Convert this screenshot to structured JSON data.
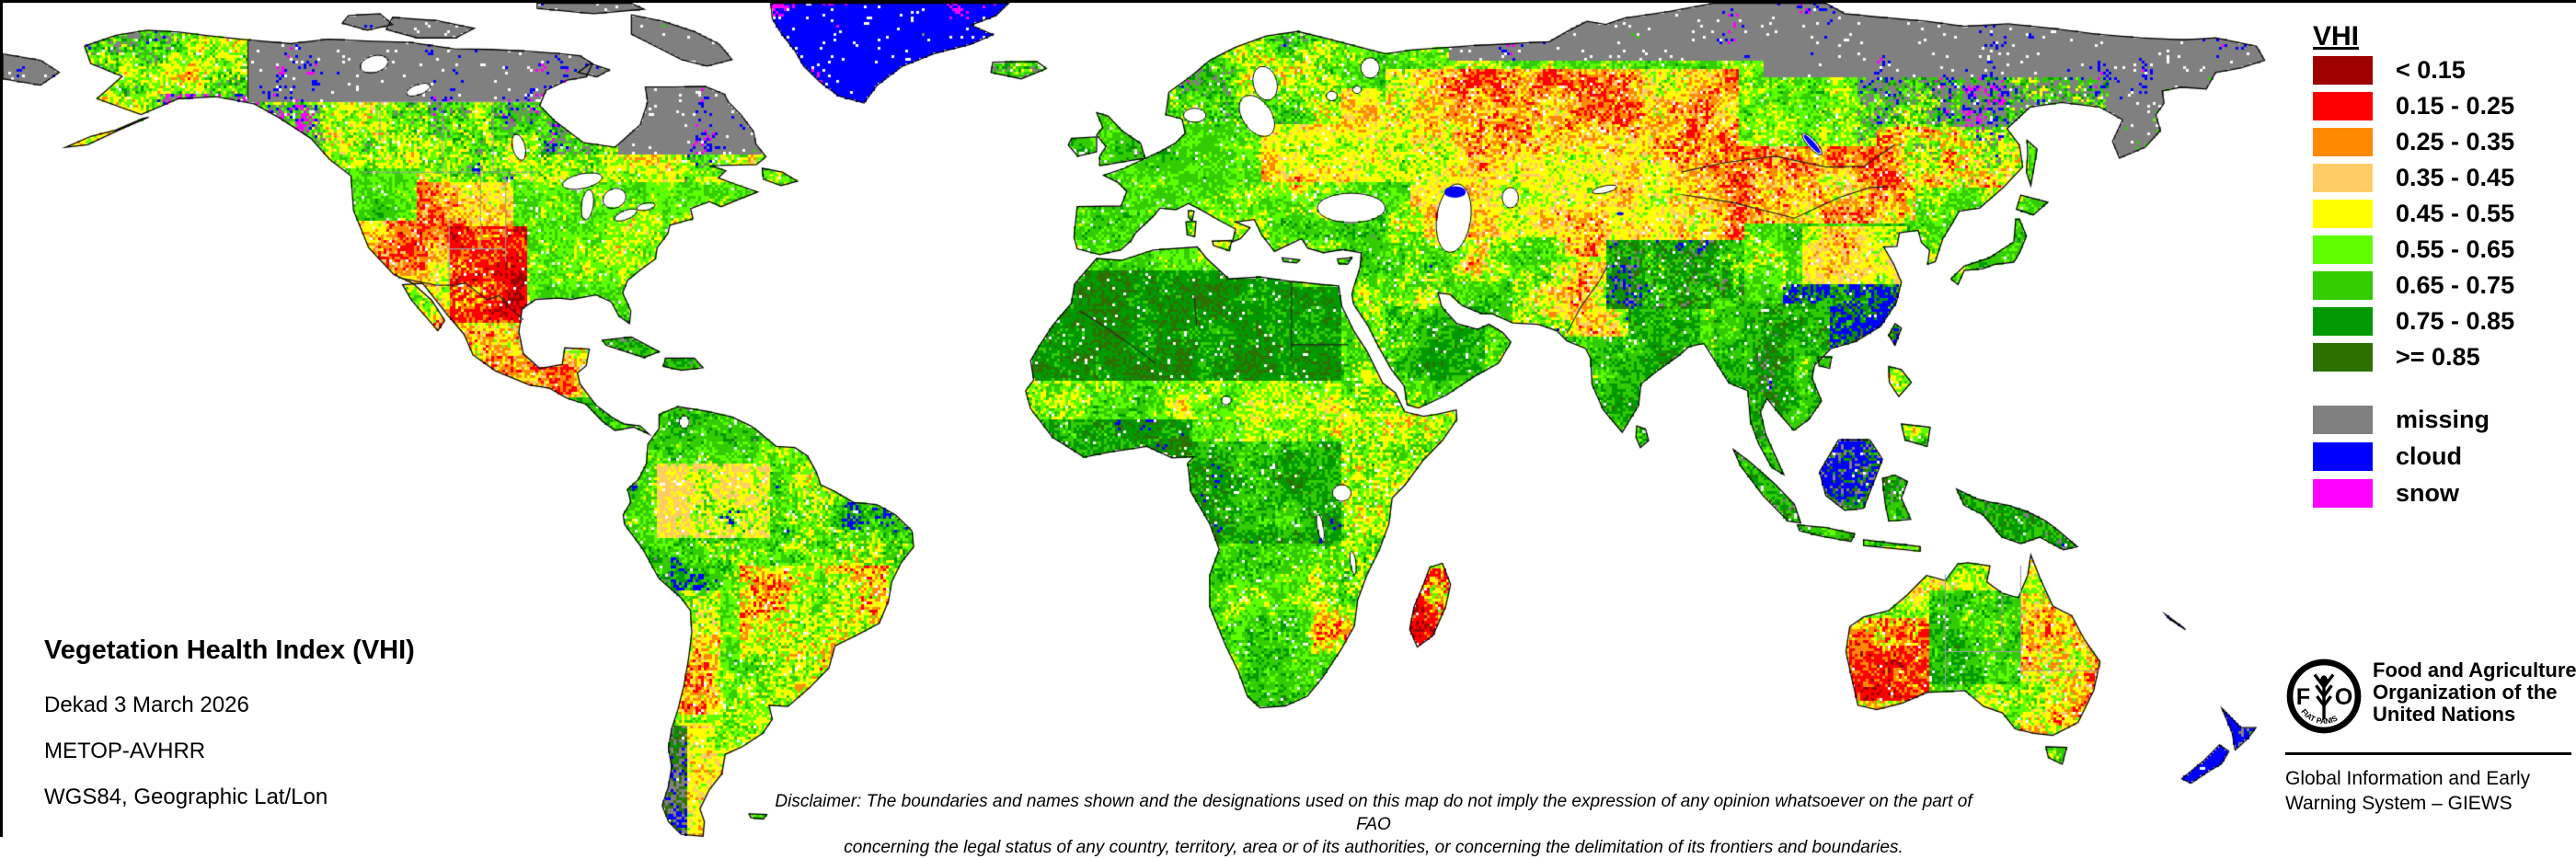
{
  "map_info": {
    "title": "Vegetation Health Index (VHI)",
    "dekad": "Dekad 3 March 2026",
    "sensor": "METOP-AVHRR",
    "projection": "WGS84, Geographic Lat/Lon"
  },
  "legend": {
    "title": "VHI",
    "classes": [
      {
        "label": "< 0.15",
        "color": "#9e0000"
      },
      {
        "label": "0.15 - 0.25",
        "color": "#ff0000"
      },
      {
        "label": "0.25 - 0.35",
        "color": "#ff8a00"
      },
      {
        "label": "0.35 - 0.45",
        "color": "#ffcc66"
      },
      {
        "label": "0.45 - 0.55",
        "color": "#ffff00"
      },
      {
        "label": "0.55 - 0.65",
        "color": "#5fff00"
      },
      {
        "label": "0.65 - 0.75",
        "color": "#32cc00"
      },
      {
        "label": "0.75 - 0.85",
        "color": "#009a00"
      },
      {
        "label": ">= 0.85",
        "color": "#2d7000"
      }
    ],
    "flags": [
      {
        "label": "missing",
        "color": "#808080"
      },
      {
        "label": "cloud",
        "color": "#0000ff"
      },
      {
        "label": "snow",
        "color": "#ff00ff"
      }
    ]
  },
  "disclaimer": {
    "line1": "Disclaimer: The boundaries and names shown and the designations used on this map do not imply the expression of any opinion whatsoever on the part of FAO",
    "line2": "concerning the legal status of any country, territory, area or of its authorities, or concerning the delimitation of its frontiers and boundaries."
  },
  "footer": {
    "org_lines": [
      "Food and Agriculture",
      "Organization of the",
      "United Nations"
    ],
    "giews_lines": [
      "Global Information and Early",
      "Warning System – GIEWS"
    ],
    "logo": {
      "letters": "FAO",
      "motto": "FIAT PANIS"
    }
  },
  "map_style": {
    "ocean": "#ffffff",
    "coastline": "#000000",
    "admin_line": "#9e9e9e",
    "country_line": "#222222"
  }
}
